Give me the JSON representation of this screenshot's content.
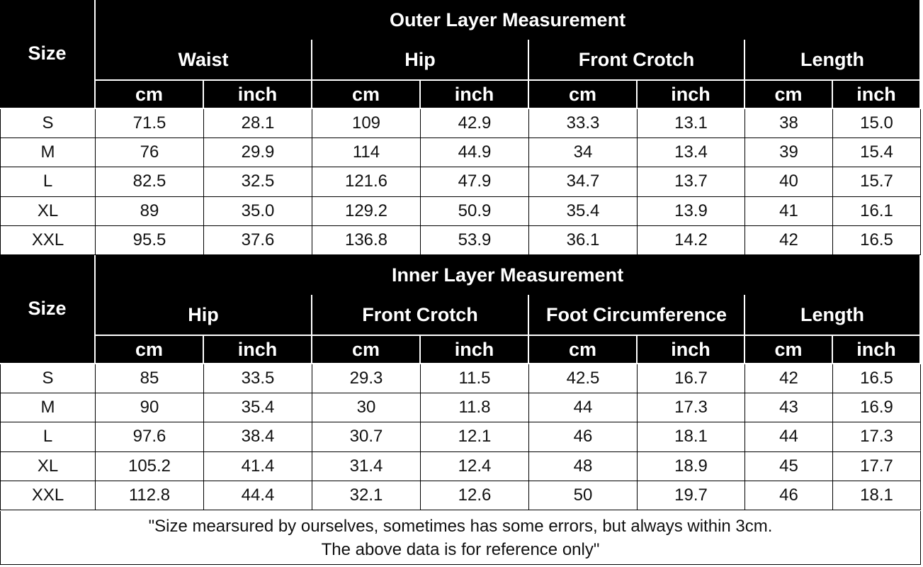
{
  "outer": {
    "title": "Outer Layer Measurement",
    "size_label": "Size",
    "groups": [
      "Waist",
      "Hip",
      "Front Crotch",
      "Length"
    ],
    "units": [
      "cm",
      "inch",
      "cm",
      "inch",
      "cm",
      "inch",
      "cm",
      "inch"
    ],
    "rows": [
      [
        "S",
        "71.5",
        "28.1",
        "109",
        "42.9",
        "33.3",
        "13.1",
        "38",
        "15.0"
      ],
      [
        "M",
        "76",
        "29.9",
        "114",
        "44.9",
        "34",
        "13.4",
        "39",
        "15.4"
      ],
      [
        "L",
        "82.5",
        "32.5",
        "121.6",
        "47.9",
        "34.7",
        "13.7",
        "40",
        "15.7"
      ],
      [
        "XL",
        "89",
        "35.0",
        "129.2",
        "50.9",
        "35.4",
        "13.9",
        "41",
        "16.1"
      ],
      [
        "XXL",
        "95.5",
        "37.6",
        "136.8",
        "53.9",
        "36.1",
        "14.2",
        "42",
        "16.5"
      ]
    ]
  },
  "inner": {
    "title": "Inner Layer Measurement",
    "size_label": "Size",
    "groups": [
      "Hip",
      "Front Crotch",
      "Foot Circumference",
      "Length"
    ],
    "units": [
      "cm",
      "inch",
      "cm",
      "inch",
      "cm",
      "inch",
      "cm",
      "inch"
    ],
    "rows": [
      [
        "S",
        "85",
        "33.5",
        "29.3",
        "11.5",
        "42.5",
        "16.7",
        "42",
        "16.5"
      ],
      [
        "M",
        "90",
        "35.4",
        "30",
        "11.8",
        "44",
        "17.3",
        "43",
        "16.9"
      ],
      [
        "L",
        "97.6",
        "38.4",
        "30.7",
        "12.1",
        "46",
        "18.1",
        "44",
        "17.3"
      ],
      [
        "XL",
        "105.2",
        "41.4",
        "31.4",
        "12.4",
        "48",
        "18.9",
        "45",
        "17.7"
      ],
      [
        "XXL",
        "112.8",
        "44.4",
        "32.1",
        "12.6",
        "50",
        "19.7",
        "46",
        "18.1"
      ]
    ]
  },
  "footer": [
    "\"Size mearsured by ourselves, sometimes has some errors, but always within 3cm.",
    "The above data is for reference only\""
  ]
}
